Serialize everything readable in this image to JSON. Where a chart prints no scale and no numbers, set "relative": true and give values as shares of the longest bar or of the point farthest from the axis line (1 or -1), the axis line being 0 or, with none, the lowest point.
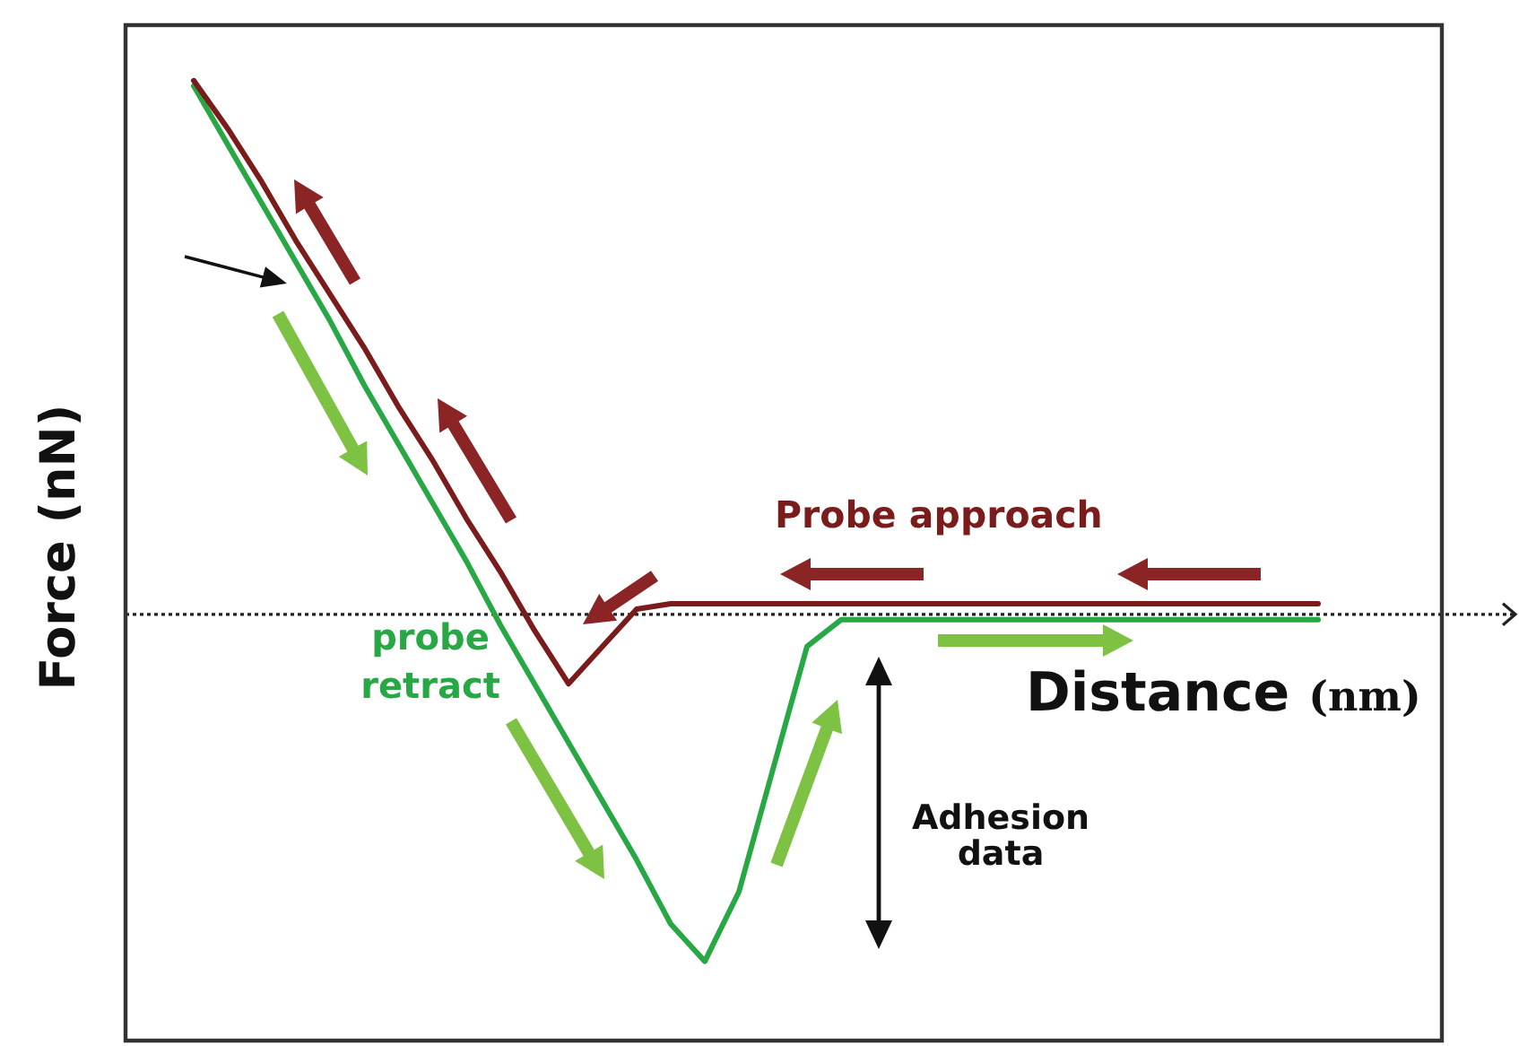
{
  "chart_data": {
    "type": "line",
    "xlabel": "Distance (nm)",
    "ylabel": "Force (nN)",
    "relative": true,
    "tick_labels": false,
    "marker": "none",
    "line_style": "solid",
    "categories": [
      null,
      null,
      null,
      null,
      null,
      null,
      null,
      null,
      null,
      null,
      null,
      null,
      null,
      null,
      null,
      null,
      null,
      null,
      null,
      null,
      null,
      null,
      null,
      null,
      null,
      null,
      null,
      null,
      null,
      null,
      null,
      null,
      null,
      null,
      null,
      null,
      null,
      null,
      null
    ],
    "series": [
      {
        "name": "Probe approach",
        "color": "#7a1c1c",
        "values": [
          null,
          null,
          1,
          0.91,
          0.81,
          0.7,
          0.6,
          0.5,
          0.39,
          0.29,
          0.18,
          0.08,
          -0.03,
          -0.13,
          -0.06,
          0.01,
          0.02,
          0.02,
          0.02,
          0.02,
          0.02,
          0.02,
          0.02,
          0.02,
          0.02,
          0.02,
          0.02,
          0.02,
          0.02,
          0.02,
          0.02,
          0.02,
          0.02,
          0.02,
          0.02,
          0.02,
          null,
          null,
          null
        ]
      },
      {
        "name": "probe retract",
        "color": "#27a844",
        "values": [
          null,
          null,
          0.99,
          0.88,
          0.77,
          0.66,
          0.55,
          0.43,
          0.32,
          0.21,
          0.1,
          -0.02,
          -0.13,
          -0.24,
          -0.35,
          -0.46,
          -0.58,
          -0.65,
          -0.52,
          -0.29,
          -0.06,
          -0.01,
          -0.01,
          -0.01,
          -0.01,
          -0.01,
          -0.01,
          -0.01,
          -0.01,
          -0.01,
          -0.01,
          -0.01,
          -0.01,
          -0.01,
          -0.01,
          -0.01,
          null,
          null,
          null
        ]
      }
    ],
    "ref_lines": [
      {
        "axis": "y",
        "value": 0,
        "color": "#222222",
        "line_style": "dotted"
      }
    ],
    "annotations": [
      "Adhesion data"
    ]
  }
}
